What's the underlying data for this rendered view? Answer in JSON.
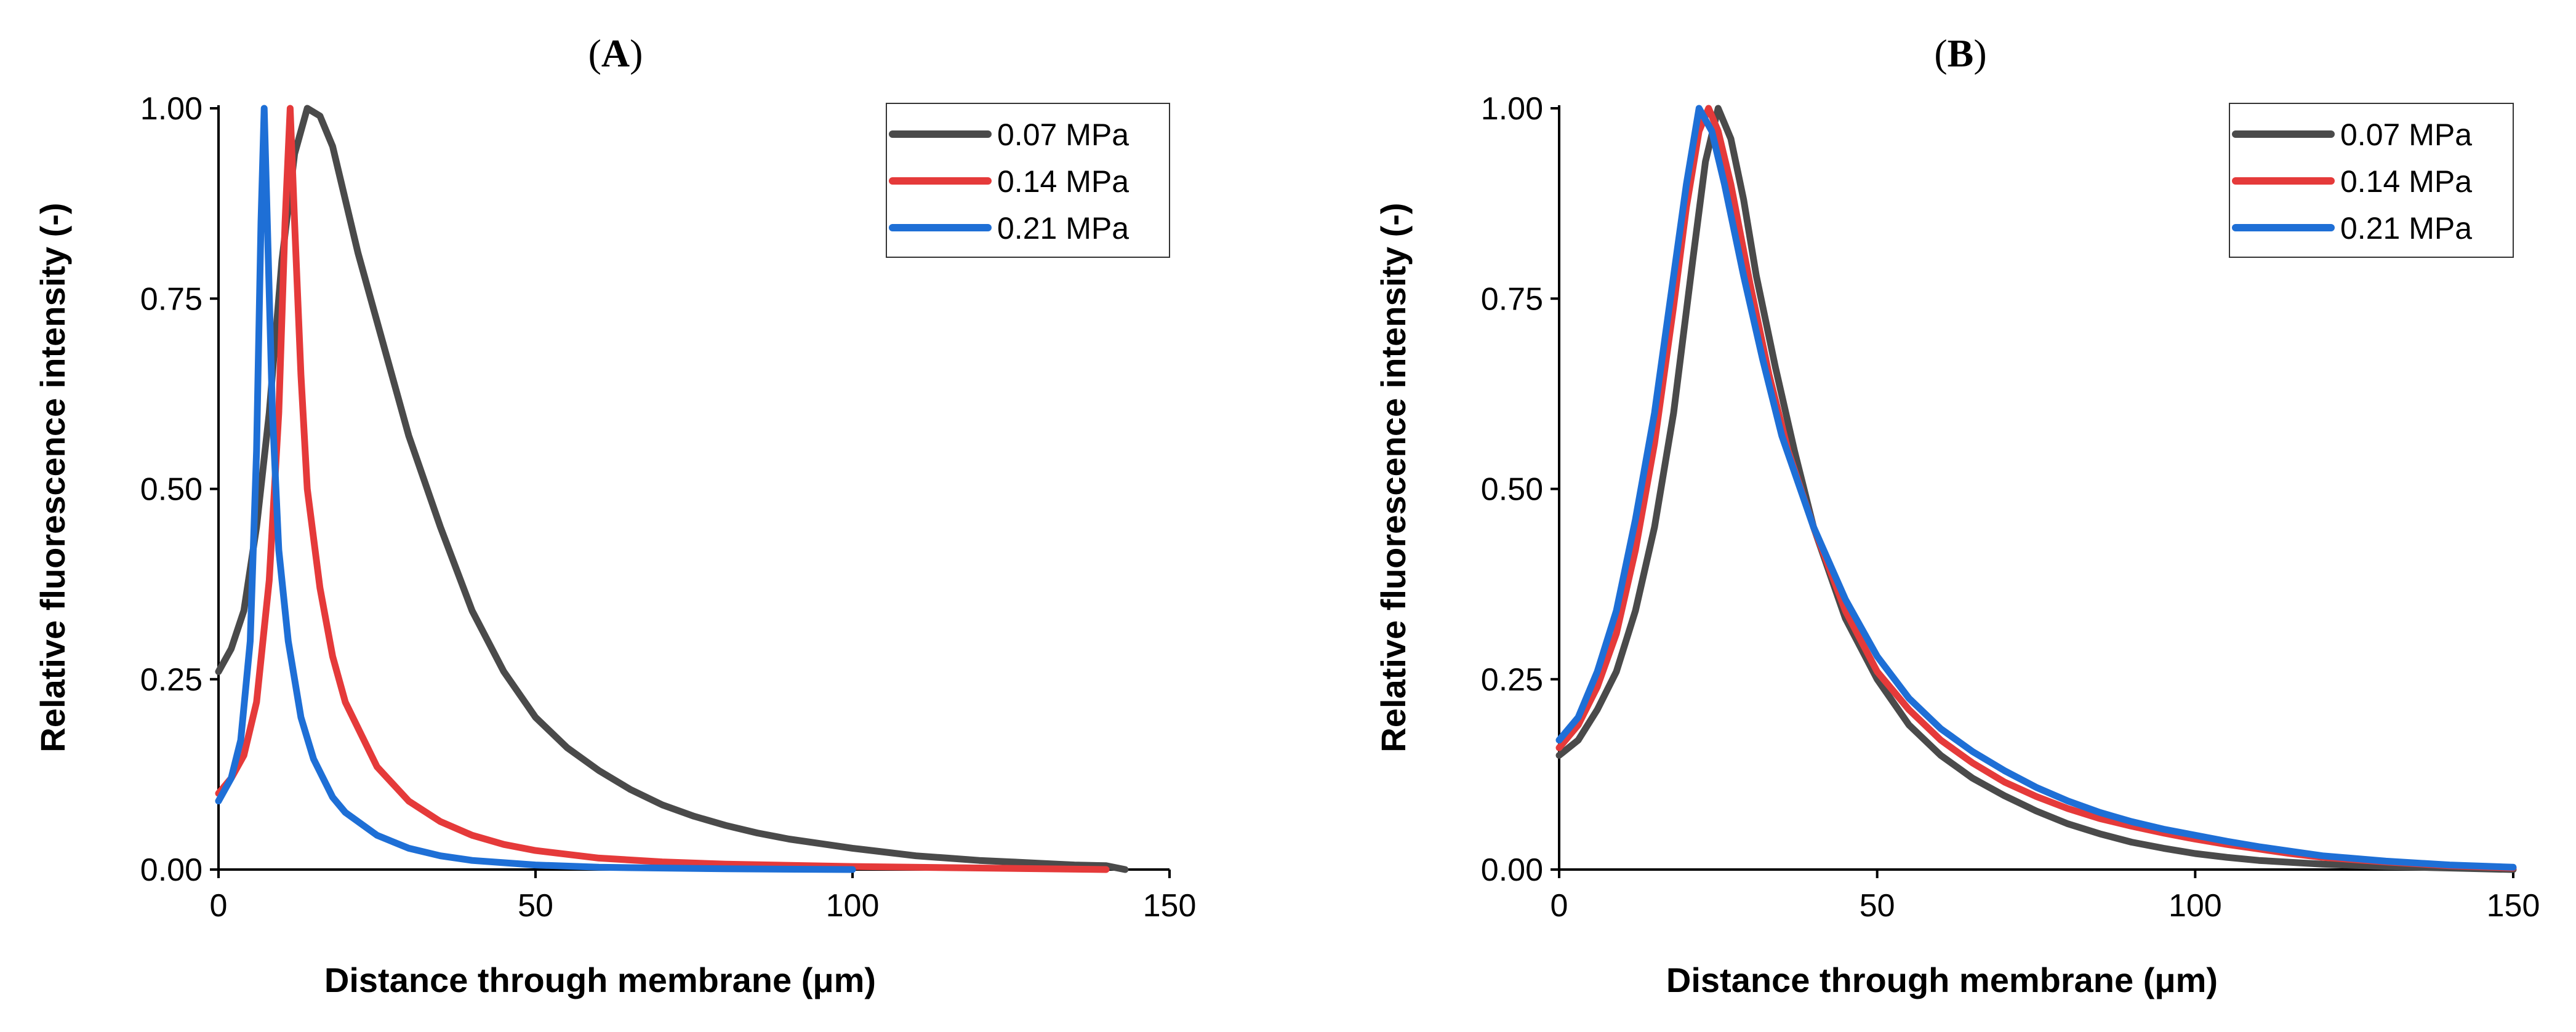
{
  "chart_data": [
    {
      "panel_label_open": "(",
      "panel_label_letter": "A",
      "panel_label_close": ")",
      "type": "line",
      "xlabel": "Distance through membrane (μm)",
      "ylabel": "Relative fluorescence intensity (-)",
      "xlim": [
        0,
        150
      ],
      "ylim": [
        0,
        1
      ],
      "x_ticks": [
        "0",
        "50",
        "100",
        "150"
      ],
      "x_tick_values": [
        0,
        50,
        100,
        150
      ],
      "y_ticks": [
        "0.00",
        "0.25",
        "0.50",
        "0.75",
        "1.00"
      ],
      "y_tick_values": [
        0,
        0.25,
        0.5,
        0.75,
        1.0
      ],
      "legend_position": "top-right",
      "series": [
        {
          "name": "0.07 MPa",
          "color": "#4a4a4a",
          "points": [
            [
              0,
              0.26
            ],
            [
              2,
              0.29
            ],
            [
              4,
              0.34
            ],
            [
              6,
              0.45
            ],
            [
              8,
              0.6
            ],
            [
              10,
              0.8
            ],
            [
              12,
              0.94
            ],
            [
              14,
              1.0
            ],
            [
              16,
              0.99
            ],
            [
              18,
              0.95
            ],
            [
              20,
              0.88
            ],
            [
              22,
              0.81
            ],
            [
              25,
              0.72
            ],
            [
              28,
              0.63
            ],
            [
              30,
              0.57
            ],
            [
              35,
              0.45
            ],
            [
              40,
              0.34
            ],
            [
              45,
              0.26
            ],
            [
              50,
              0.2
            ],
            [
              55,
              0.16
            ],
            [
              60,
              0.13
            ],
            [
              65,
              0.105
            ],
            [
              70,
              0.085
            ],
            [
              75,
              0.07
            ],
            [
              80,
              0.058
            ],
            [
              85,
              0.048
            ],
            [
              90,
              0.04
            ],
            [
              95,
              0.034
            ],
            [
              100,
              0.028
            ],
            [
              105,
              0.023
            ],
            [
              110,
              0.018
            ],
            [
              115,
              0.015
            ],
            [
              120,
              0.012
            ],
            [
              125,
              0.01
            ],
            [
              130,
              0.008
            ],
            [
              135,
              0.006
            ],
            [
              140,
              0.005
            ],
            [
              143,
              0.0
            ]
          ]
        },
        {
          "name": "0.14 MPa",
          "color": "#e53a3a",
          "points": [
            [
              0,
              0.1
            ],
            [
              2,
              0.12
            ],
            [
              4,
              0.15
            ],
            [
              6,
              0.22
            ],
            [
              8,
              0.38
            ],
            [
              9.5,
              0.6
            ],
            [
              10.5,
              0.85
            ],
            [
              11.3,
              1.0
            ],
            [
              12,
              0.85
            ],
            [
              13,
              0.65
            ],
            [
              14,
              0.5
            ],
            [
              16,
              0.37
            ],
            [
              18,
              0.28
            ],
            [
              20,
              0.22
            ],
            [
              25,
              0.135
            ],
            [
              30,
              0.09
            ],
            [
              35,
              0.063
            ],
            [
              40,
              0.045
            ],
            [
              45,
              0.033
            ],
            [
              50,
              0.025
            ],
            [
              60,
              0.015
            ],
            [
              70,
              0.01
            ],
            [
              80,
              0.007
            ],
            [
              100,
              0.004
            ],
            [
              120,
              0.002
            ],
            [
              140,
              0.0
            ]
          ]
        },
        {
          "name": "0.21 MPa",
          "color": "#1e6fd6",
          "points": [
            [
              0,
              0.09
            ],
            [
              2,
              0.12
            ],
            [
              3.5,
              0.17
            ],
            [
              5,
              0.3
            ],
            [
              6,
              0.55
            ],
            [
              6.7,
              0.85
            ],
            [
              7.2,
              1.0
            ],
            [
              7.7,
              0.85
            ],
            [
              8.5,
              0.6
            ],
            [
              9.5,
              0.42
            ],
            [
              11,
              0.3
            ],
            [
              13,
              0.2
            ],
            [
              15,
              0.145
            ],
            [
              18,
              0.095
            ],
            [
              20,
              0.075
            ],
            [
              25,
              0.045
            ],
            [
              30,
              0.028
            ],
            [
              35,
              0.018
            ],
            [
              40,
              0.012
            ],
            [
              50,
              0.006
            ],
            [
              60,
              0.003
            ],
            [
              80,
              0.001
            ],
            [
              100,
              0.0
            ]
          ]
        }
      ]
    },
    {
      "panel_label_open": "(",
      "panel_label_letter": "B",
      "panel_label_close": ")",
      "type": "line",
      "xlabel": "Distance through membrane (μm)",
      "ylabel": "Relative fluorescence intensity (-)",
      "xlim": [
        0,
        150
      ],
      "ylim": [
        0,
        1
      ],
      "x_ticks": [
        "0",
        "50",
        "100",
        "150"
      ],
      "x_tick_values": [
        0,
        50,
        100,
        150
      ],
      "y_ticks": [
        "0.00",
        "0.25",
        "0.50",
        "0.75",
        "1.00"
      ],
      "y_tick_values": [
        0,
        0.25,
        0.5,
        0.75,
        1.0
      ],
      "legend_position": "top-right",
      "series": [
        {
          "name": "0.07 MPa",
          "color": "#4a4a4a",
          "points": [
            [
              0,
              0.15
            ],
            [
              3,
              0.17
            ],
            [
              6,
              0.21
            ],
            [
              9,
              0.26
            ],
            [
              12,
              0.34
            ],
            [
              15,
              0.45
            ],
            [
              18,
              0.6
            ],
            [
              21,
              0.8
            ],
            [
              23,
              0.93
            ],
            [
              25,
              1.0
            ],
            [
              27,
              0.96
            ],
            [
              29,
              0.88
            ],
            [
              31,
              0.78
            ],
            [
              34,
              0.66
            ],
            [
              37,
              0.55
            ],
            [
              40,
              0.45
            ],
            [
              45,
              0.33
            ],
            [
              50,
              0.25
            ],
            [
              55,
              0.19
            ],
            [
              60,
              0.15
            ],
            [
              65,
              0.12
            ],
            [
              70,
              0.097
            ],
            [
              75,
              0.077
            ],
            [
              80,
              0.06
            ],
            [
              85,
              0.047
            ],
            [
              90,
              0.036
            ],
            [
              95,
              0.028
            ],
            [
              100,
              0.021
            ],
            [
              105,
              0.016
            ],
            [
              110,
              0.012
            ],
            [
              120,
              0.007
            ],
            [
              130,
              0.004
            ],
            [
              140,
              0.002
            ],
            [
              150,
              0.0
            ]
          ]
        },
        {
          "name": "0.14 MPa",
          "color": "#e53a3a",
          "points": [
            [
              0,
              0.16
            ],
            [
              3,
              0.19
            ],
            [
              6,
              0.24
            ],
            [
              9,
              0.31
            ],
            [
              12,
              0.42
            ],
            [
              15,
              0.56
            ],
            [
              18,
              0.74
            ],
            [
              20,
              0.87
            ],
            [
              22,
              0.97
            ],
            [
              23.5,
              1.0
            ],
            [
              25,
              0.97
            ],
            [
              27,
              0.9
            ],
            [
              30,
              0.77
            ],
            [
              33,
              0.65
            ],
            [
              36,
              0.55
            ],
            [
              40,
              0.45
            ],
            [
              45,
              0.34
            ],
            [
              50,
              0.26
            ],
            [
              55,
              0.21
            ],
            [
              60,
              0.17
            ],
            [
              65,
              0.14
            ],
            [
              70,
              0.115
            ],
            [
              75,
              0.096
            ],
            [
              80,
              0.08
            ],
            [
              85,
              0.067
            ],
            [
              90,
              0.057
            ],
            [
              95,
              0.048
            ],
            [
              100,
              0.04
            ],
            [
              105,
              0.033
            ],
            [
              110,
              0.027
            ],
            [
              115,
              0.021
            ],
            [
              120,
              0.016
            ],
            [
              130,
              0.01
            ],
            [
              140,
              0.005
            ],
            [
              150,
              0.002
            ]
          ]
        },
        {
          "name": "0.21 MPa",
          "color": "#1e6fd6",
          "points": [
            [
              0,
              0.17
            ],
            [
              3,
              0.2
            ],
            [
              6,
              0.26
            ],
            [
              9,
              0.34
            ],
            [
              12,
              0.46
            ],
            [
              15,
              0.6
            ],
            [
              18,
              0.78
            ],
            [
              20,
              0.9
            ],
            [
              22,
              1.0
            ],
            [
              24,
              0.97
            ],
            [
              26,
              0.9
            ],
            [
              29,
              0.78
            ],
            [
              32,
              0.67
            ],
            [
              35,
              0.57
            ],
            [
              40,
              0.45
            ],
            [
              45,
              0.355
            ],
            [
              50,
              0.28
            ],
            [
              55,
              0.225
            ],
            [
              60,
              0.185
            ],
            [
              65,
              0.155
            ],
            [
              70,
              0.13
            ],
            [
              75,
              0.108
            ],
            [
              80,
              0.09
            ],
            [
              85,
              0.075
            ],
            [
              90,
              0.063
            ],
            [
              95,
              0.053
            ],
            [
              100,
              0.045
            ],
            [
              105,
              0.037
            ],
            [
              110,
              0.03
            ],
            [
              115,
              0.024
            ],
            [
              120,
              0.018
            ],
            [
              130,
              0.011
            ],
            [
              140,
              0.006
            ],
            [
              150,
              0.003
            ]
          ]
        }
      ]
    }
  ]
}
